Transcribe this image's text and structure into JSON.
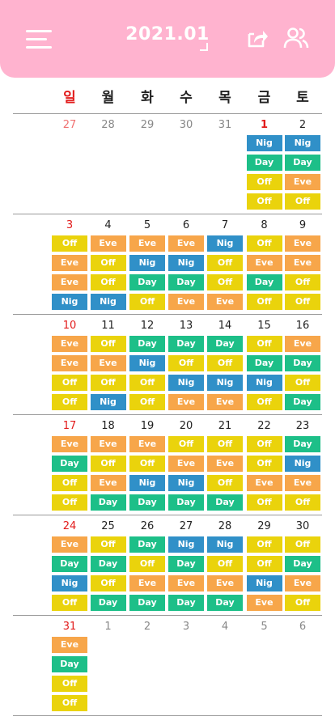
{
  "header": {
    "title": "2021.01",
    "icons": {
      "menu": "menu-icon",
      "share": "share-icon",
      "people": "people-icon"
    }
  },
  "weekdays": [
    "일",
    "월",
    "화",
    "수",
    "목",
    "금",
    "토"
  ],
  "colors": {
    "Nig": "#3090c8",
    "Day": "#1dbf88",
    "Off": "#ead30c",
    "Eve": "#f7a64a",
    "header": "#ffb3cf",
    "sunday": "#e21b1b"
  },
  "weeks": [
    {
      "days": [
        {
          "num": "27",
          "other": true,
          "shifts": []
        },
        {
          "num": "28",
          "other": true,
          "shifts": []
        },
        {
          "num": "29",
          "other": true,
          "shifts": []
        },
        {
          "num": "30",
          "other": true,
          "shifts": []
        },
        {
          "num": "31",
          "other": true,
          "shifts": []
        },
        {
          "num": "1",
          "today": true,
          "shifts": [
            "Nig",
            "Day",
            "Off",
            "Off"
          ]
        },
        {
          "num": "2",
          "shifts": [
            "Nig",
            "Day",
            "Eve",
            "Off"
          ]
        }
      ]
    },
    {
      "days": [
        {
          "num": "3",
          "shifts": [
            "Off",
            "Eve",
            "Eve",
            "Nig"
          ]
        },
        {
          "num": "4",
          "shifts": [
            "Eve",
            "Off",
            "Off",
            "Nig"
          ]
        },
        {
          "num": "5",
          "shifts": [
            "Eve",
            "Nig",
            "Day",
            "Off"
          ]
        },
        {
          "num": "6",
          "shifts": [
            "Eve",
            "Nig",
            "Day",
            "Eve"
          ]
        },
        {
          "num": "7",
          "shifts": [
            "Nig",
            "Off",
            "Off",
            "Eve"
          ]
        },
        {
          "num": "8",
          "shifts": [
            "Off",
            "Eve",
            "Day",
            "Off"
          ]
        },
        {
          "num": "9",
          "shifts": [
            "Eve",
            "Eve",
            "Off",
            "Off"
          ]
        }
      ]
    },
    {
      "days": [
        {
          "num": "10",
          "shifts": [
            "Eve",
            "Eve",
            "Off",
            "Off"
          ]
        },
        {
          "num": "11",
          "shifts": [
            "Off",
            "Eve",
            "Off",
            "Nig"
          ]
        },
        {
          "num": "12",
          "shifts": [
            "Day",
            "Nig",
            "Off",
            "Off"
          ]
        },
        {
          "num": "13",
          "shifts": [
            "Day",
            "Off",
            "Nig",
            "Eve"
          ]
        },
        {
          "num": "14",
          "shifts": [
            "Day",
            "Off",
            "Nig",
            "Eve"
          ]
        },
        {
          "num": "15",
          "shifts": [
            "Off",
            "Day",
            "Nig",
            "Off"
          ]
        },
        {
          "num": "16",
          "shifts": [
            "Eve",
            "Day",
            "Off",
            "Day"
          ]
        }
      ]
    },
    {
      "days": [
        {
          "num": "17",
          "shifts": [
            "Eve",
            "Day",
            "Off",
            "Off"
          ]
        },
        {
          "num": "18",
          "shifts": [
            "Eve",
            "Off",
            "Eve",
            "Day"
          ]
        },
        {
          "num": "19",
          "shifts": [
            "Eve",
            "Off",
            "Nig",
            "Day"
          ]
        },
        {
          "num": "20",
          "shifts": [
            "Off",
            "Eve",
            "Nig",
            "Day"
          ]
        },
        {
          "num": "21",
          "shifts": [
            "Off",
            "Eve",
            "Off",
            "Day"
          ]
        },
        {
          "num": "22",
          "shifts": [
            "Off",
            "Off",
            "Eve",
            "Off"
          ]
        },
        {
          "num": "23",
          "shifts": [
            "Day",
            "Nig",
            "Eve",
            "Off"
          ]
        }
      ]
    },
    {
      "days": [
        {
          "num": "24",
          "shifts": [
            "Eve",
            "Day",
            "Nig",
            "Off"
          ]
        },
        {
          "num": "25",
          "shifts": [
            "Off",
            "Day",
            "Off",
            "Day"
          ]
        },
        {
          "num": "26",
          "shifts": [
            "Day",
            "Off",
            "Eve",
            "Day"
          ]
        },
        {
          "num": "27",
          "shifts": [
            "Nig",
            "Day",
            "Eve",
            "Day"
          ]
        },
        {
          "num": "28",
          "shifts": [
            "Nig",
            "Off",
            "Eve",
            "Day"
          ]
        },
        {
          "num": "29",
          "shifts": [
            "Off",
            "Off",
            "Nig",
            "Eve"
          ]
        },
        {
          "num": "30",
          "shifts": [
            "Off",
            "Day",
            "Eve",
            "Off"
          ]
        }
      ]
    },
    {
      "days": [
        {
          "num": "31",
          "shifts": [
            "Eve",
            "Day",
            "Off",
            "Off"
          ]
        },
        {
          "num": "1",
          "other": true,
          "shifts": []
        },
        {
          "num": "2",
          "other": true,
          "shifts": []
        },
        {
          "num": "3",
          "other": true,
          "shifts": []
        },
        {
          "num": "4",
          "other": true,
          "shifts": []
        },
        {
          "num": "5",
          "other": true,
          "shifts": []
        },
        {
          "num": "6",
          "other": true,
          "shifts": []
        }
      ]
    }
  ]
}
